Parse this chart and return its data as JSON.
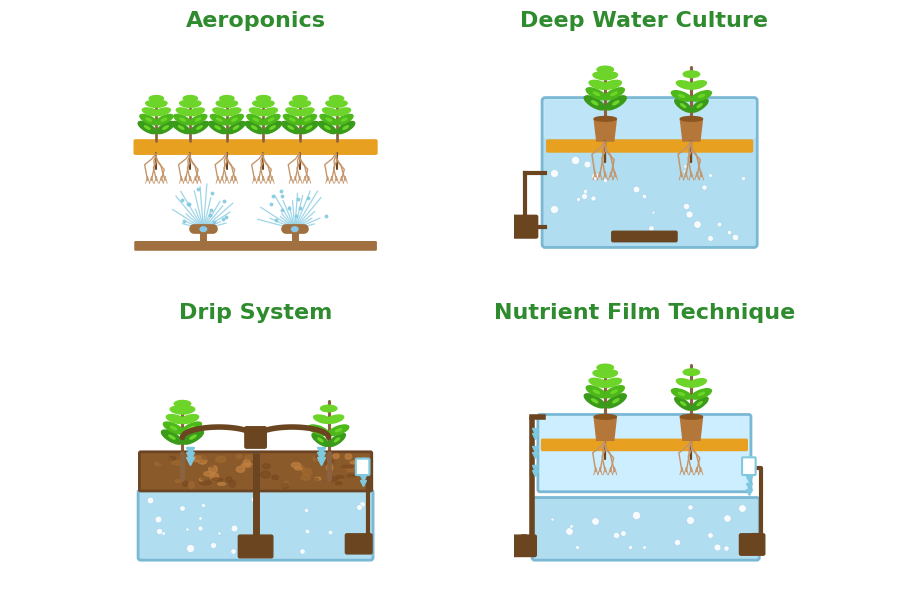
{
  "title_aeroponics": "Aeroponics",
  "title_dwc": "Deep Water Culture",
  "title_drip": "Drip System",
  "title_nft": "Nutrient Film Technique",
  "title_color": "#2e8b2e",
  "title_fontsize": 16,
  "bg_color": "#ffffff",
  "green_dark": "#3a9a1a",
  "green_mid": "#4db81a",
  "green_light": "#6dd42a",
  "brown_stem": "#8B6340",
  "brown_dark": "#6b4520",
  "brown_roots": "#c4956a",
  "orange_board": "#e8a020",
  "brown_floor": "#a07040",
  "water_color": "#b0ddf0",
  "water_light": "#cceeff",
  "water_dark": "#88c8e8",
  "blue_spray": "#7ec8e0",
  "soil_color": "#8B5A2B",
  "soil_light": "#a06830",
  "pot_color": "#b5763a",
  "pot_dark": "#8a5520",
  "pump_color": "#6b4520",
  "border_color": "#7ab8d4"
}
